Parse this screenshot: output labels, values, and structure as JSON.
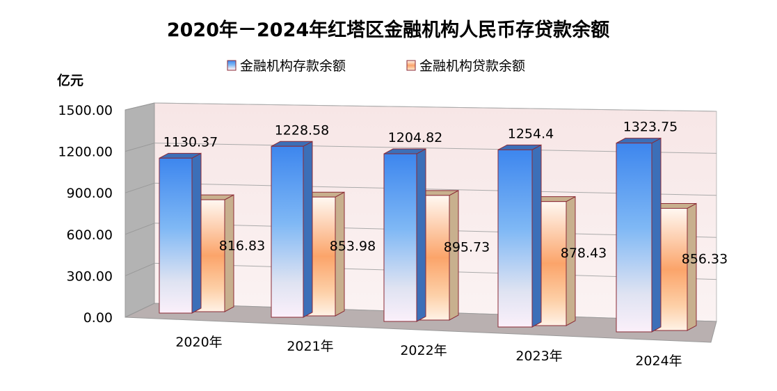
{
  "chart_data": {
    "type": "bar",
    "title": "2020年－2024年红塔区金融机构人民币存贷款余额",
    "ylabel": "亿元",
    "categories": [
      "2020年",
      "2021年",
      "2022年",
      "2023年",
      "2024年"
    ],
    "series": [
      {
        "name": "金融机构存款余额",
        "values": [
          1130.37,
          1228.58,
          1204.82,
          1254.4,
          1323.75
        ],
        "labels": [
          "1130.37",
          "1228.58",
          "1204.82",
          "1254.4",
          "1323.75"
        ],
        "color": "#4a8ef0"
      },
      {
        "name": "金融机构贷款余额",
        "values": [
          816.83,
          853.98,
          895.73,
          878.43,
          856.33
        ],
        "labels": [
          "816.83",
          "853.98",
          "895.73",
          "878.43",
          "856.33"
        ],
        "color": "#f7a35c"
      }
    ],
    "yticks": [
      "0.00",
      "300.00",
      "600.00",
      "900.00",
      "1200.00",
      "1500.00"
    ],
    "ylim": [
      0,
      1500
    ],
    "grid": true,
    "legend": "top",
    "three_d": true
  }
}
